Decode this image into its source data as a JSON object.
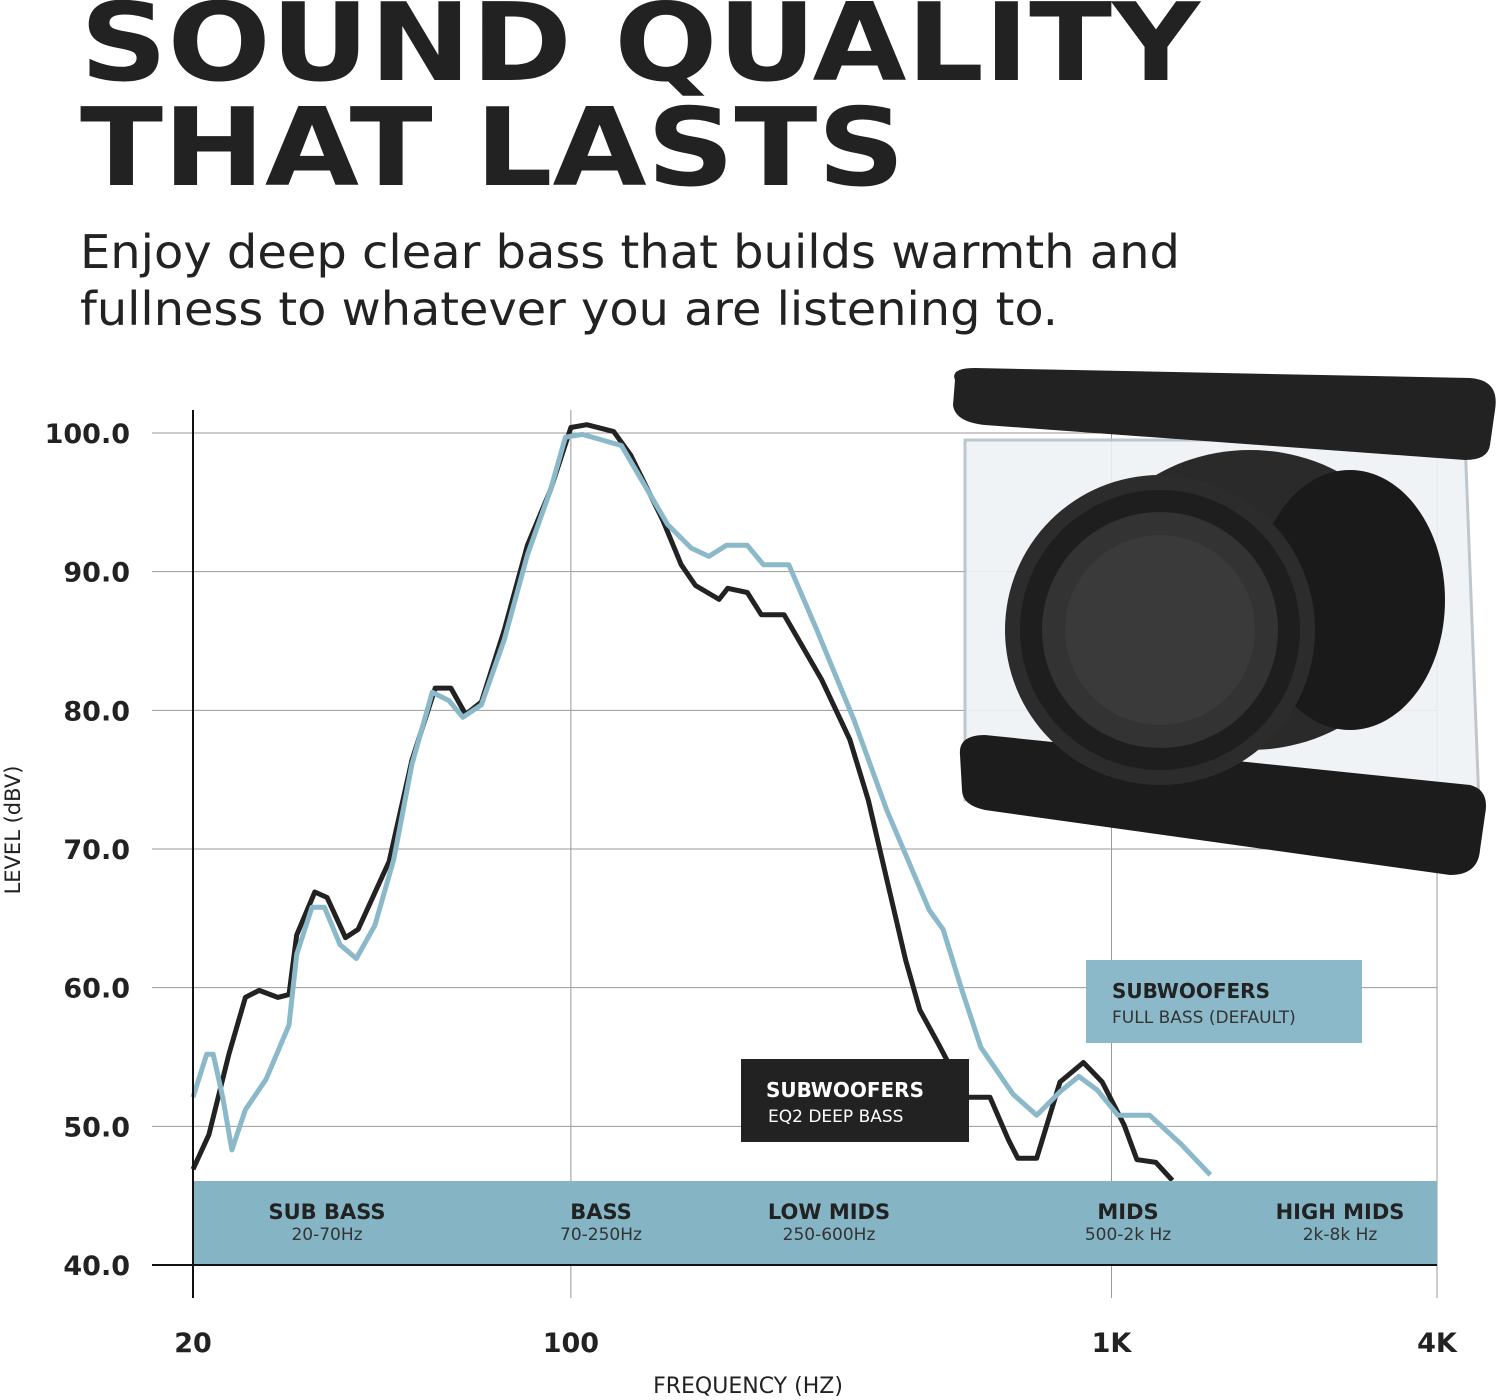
{
  "header": {
    "title_lines": [
      "SOUND QUALITY",
      "THAT LASTS"
    ],
    "subtitle_lines": [
      "Enjoy deep clear bass that builds warmth and",
      "fullness to whatever you are listening to."
    ]
  },
  "chart_data": {
    "type": "line",
    "xscale": "log",
    "xlabel": "FREQUENCY (HZ)",
    "ylabel": "LEVEL (dBV)",
    "xlim": [
      20,
      4000
    ],
    "ylim": [
      40,
      100
    ],
    "xticks": [
      20,
      100,
      {
        "value": 1000,
        "label": "1K"
      },
      {
        "value": 4000,
        "label": "4K"
      }
    ],
    "yticks": [
      {
        "value": 40,
        "label": "40.0"
      },
      {
        "value": 50,
        "label": "50.0"
      },
      {
        "value": 60,
        "label": "60.0"
      },
      {
        "value": 70,
        "label": "70.0"
      },
      {
        "value": 80,
        "label": "80.0"
      },
      {
        "value": 90,
        "label": "90.0"
      },
      {
        "value": 100,
        "label": "100.0"
      }
    ],
    "grid": true,
    "series": [
      {
        "name": "SUBWOOFERS",
        "label": "EQ2 DEEP BASS",
        "color": "#222222",
        "x": [
          20,
          21.4,
          23.3,
          25,
          26.5,
          28.7,
          30.1,
          31.1,
          33.6,
          35.4,
          38.3,
          40.4,
          46.1,
          50.8,
          56.1,
          60,
          63.9,
          68.3,
          75.3,
          83.1,
          91.7,
          100,
          107,
          120,
          129,
          148,
          160,
          170,
          188,
          195,
          212,
          225,
          248,
          291,
          328,
          355,
          384,
          416,
          442,
          479,
          539,
          596,
          645,
          671,
          727,
          803,
          887,
          961,
          1055,
          1114,
          1208,
          1296
        ],
        "values": [
          46.9,
          49.4,
          55.2,
          59.3,
          59.8,
          59.3,
          59.5,
          63.8,
          66.9,
          66.5,
          63.6,
          64.2,
          69.1,
          76.4,
          81.6,
          81.6,
          79.7,
          80.6,
          85.8,
          91.9,
          95.9,
          100.4,
          100.6,
          100.1,
          98.4,
          93.7,
          90.5,
          89.0,
          88.0,
          88.8,
          88.5,
          86.9,
          86.9,
          82.2,
          77.9,
          73.5,
          67.8,
          62.0,
          58.4,
          55.9,
          52.1,
          52.1,
          49.0,
          47.7,
          47.7,
          53.2,
          54.6,
          53.2,
          50.1,
          47.6,
          47.4,
          46.1
        ]
      },
      {
        "name": "SUBWOOFERS",
        "label": "FULL BASS (DEFAULT)",
        "color": "#8bb9c9",
        "x": [
          20,
          21.2,
          21.8,
          22.7,
          23.6,
          25,
          27.3,
          30.1,
          31.1,
          33.2,
          35,
          37.4,
          40.1,
          43.4,
          47,
          50.8,
          55.4,
          59.5,
          63.1,
          68.3,
          75.3,
          83.1,
          91.7,
          97.7,
          105,
          124,
          151,
          167,
          180,
          194,
          212,
          227,
          253,
          285,
          334,
          384,
          460,
          488,
          529,
          573,
          658,
          727,
          803,
          870,
          942,
          1027,
          1176,
          1346,
          1523
        ],
        "values": [
          52.1,
          55.2,
          55.2,
          52.1,
          48.3,
          51.2,
          53.4,
          57.3,
          62.4,
          65.8,
          65.8,
          63.1,
          62.1,
          64.5,
          69.2,
          76.1,
          81.3,
          80.7,
          79.5,
          80.4,
          85.1,
          91.2,
          95.9,
          99.7,
          99.9,
          99.1,
          93.4,
          91.7,
          91.1,
          91.9,
          91.9,
          90.5,
          90.5,
          85.8,
          79.3,
          72.8,
          65.6,
          64.2,
          59.8,
          55.7,
          52.3,
          50.8,
          52.5,
          53.6,
          52.6,
          50.8,
          50.8,
          48.7,
          46.5
        ]
      }
    ],
    "bands": [
      {
        "name": "SUB BASS",
        "range": "20-70Hz"
      },
      {
        "name": "BASS",
        "range": "70-250Hz"
      },
      {
        "name": "LOW MIDS",
        "range": "250-600Hz"
      },
      {
        "name": "MIDS",
        "range": "500-2k Hz"
      },
      {
        "name": "HIGH MIDS",
        "range": "2k-8k Hz"
      }
    ]
  }
}
